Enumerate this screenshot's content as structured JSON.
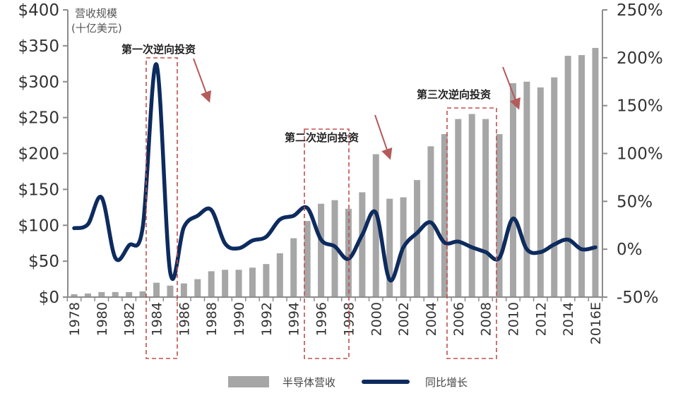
{
  "chart_data": {
    "type": "bar",
    "combo": "bar+line (dual axis)",
    "title": "",
    "ylabel_left": "营收规模（十亿美元）",
    "ylabel_left_line1": "营收规模",
    "ylabel_left_line2": "(十亿美元)",
    "ylabel_right": "",
    "xlabel": "",
    "left_axis": {
      "ylim": [
        0,
        400
      ],
      "ticks": [
        "$0",
        "$50",
        "$100",
        "$150",
        "$200",
        "$250",
        "$300",
        "$350",
        "$400"
      ],
      "tick_values": [
        0,
        50,
        100,
        150,
        200,
        250,
        300,
        350,
        400
      ]
    },
    "right_axis": {
      "ylim": [
        -50,
        250
      ],
      "ticks": [
        "-50%",
        "0%",
        "50%",
        "100%",
        "150%",
        "200%",
        "250%"
      ],
      "tick_values": [
        -50,
        0,
        50,
        100,
        150,
        200,
        250
      ]
    },
    "categories": [
      "1978",
      "1979",
      "1980",
      "1981",
      "1982",
      "1983",
      "1984",
      "1985",
      "1986",
      "1987",
      "1988",
      "1989",
      "1990",
      "1991",
      "1992",
      "1993",
      "1994",
      "1995",
      "1996",
      "1997",
      "1998",
      "1999",
      "2000",
      "2001",
      "2002",
      "2003",
      "2004",
      "2005",
      "2006",
      "2007",
      "2008",
      "2009",
      "2010",
      "2011",
      "2012",
      "2013",
      "2014",
      "2015",
      "2016E"
    ],
    "x_tick_labels": [
      "1978",
      "1980",
      "1982",
      "1984",
      "1986",
      "1988",
      "1990",
      "1992",
      "1994",
      "1996",
      "1998",
      "2000",
      "2002",
      "2004",
      "2006",
      "2008",
      "2010",
      "2012",
      "2014",
      "2016E"
    ],
    "series": [
      {
        "name": "半导体营收",
        "type": "bar",
        "axis": "left",
        "color": "#a6a6a6",
        "values": [
          4,
          5,
          7,
          7,
          7,
          8,
          20,
          16,
          19,
          25,
          36,
          38,
          38,
          41,
          46,
          61,
          82,
          106,
          130,
          135,
          123,
          146,
          199,
          137,
          139,
          163,
          210,
          227,
          248,
          255,
          248,
          227,
          298,
          300,
          292,
          306,
          336,
          337,
          347
        ]
      },
      {
        "name": "同比增长",
        "type": "line",
        "axis": "right",
        "color": "#0d2b5e",
        "values": [
          22,
          26,
          54,
          -9,
          4,
          23,
          193,
          -24,
          23,
          35,
          41,
          6,
          1,
          9,
          13,
          31,
          35,
          43,
          10,
          3,
          -10,
          15,
          38,
          -32,
          2,
          17,
          28,
          7,
          8,
          2,
          -3,
          -9,
          32,
          0,
          -3,
          5,
          10,
          0,
          2
        ]
      }
    ],
    "annotations": [
      {
        "text": "第一次逆向投资",
        "highlight_years": [
          "1984",
          "1985"
        ]
      },
      {
        "text": "第二次逆向投资",
        "highlight_years": [
          "1996",
          "1998"
        ]
      },
      {
        "text": "第三次逆向投资",
        "highlight_years": [
          "2006",
          "2009"
        ]
      }
    ],
    "legend": {
      "position": "bottom",
      "entries": [
        "半导体营收",
        "同比增长"
      ]
    },
    "grid": false
  },
  "legend": {
    "bar_label": "半导体营收",
    "line_label": "同比增长"
  },
  "annotations": {
    "first": "第一次逆向投资",
    "second": "第二次逆向投资",
    "third": "第三次逆向投资"
  },
  "colors": {
    "bar": "#a6a6a6",
    "line": "#0d2b5e",
    "highlight_box": "#c0504d",
    "arrow": "#b55a5a",
    "axis": "#8c8c8c"
  }
}
